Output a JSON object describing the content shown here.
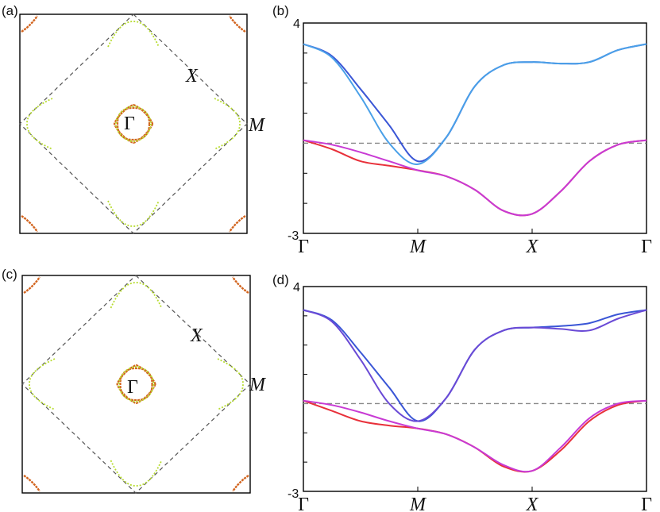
{
  "figure": {
    "panels": [
      {
        "label": "(a)",
        "point_labels": {
          "gamma": "Γ",
          "x": "X",
          "m": "M"
        }
      },
      {
        "label": "(b)"
      },
      {
        "label": "(c)",
        "point_labels": {
          "gamma": "Γ",
          "x": "X",
          "m": "M"
        }
      },
      {
        "label": "(d)"
      }
    ]
  },
  "colors": {
    "band_blue": "#3a56d6",
    "band_lightblue": "#4aa0e8",
    "band_violet": "#6a4ad6",
    "band_red": "#e8303a",
    "band_magenta": "#c83ad4",
    "fs_orange": "#d2641e",
    "fs_yellowgreen": "#b8dc32",
    "dashed": "#888888"
  },
  "chart_data": [
    {
      "id": "b",
      "type": "line",
      "title": "(b)",
      "xlabel": "",
      "ylabel": "",
      "ylim": [
        -3,
        4
      ],
      "ytick_labels": [
        "4",
        "-3"
      ],
      "xticks": [
        0,
        1,
        2,
        3
      ],
      "xtick_labels": [
        "Γ",
        "M",
        "X",
        "Γ"
      ],
      "fermi_level": 0,
      "x": [
        0,
        0.25,
        0.5,
        0.75,
        1,
        1.25,
        1.5,
        1.75,
        2,
        2.25,
        2.5,
        2.75,
        3
      ],
      "series": [
        {
          "name": "upper-band-1",
          "color": "band_blue",
          "values": [
            3.3,
            2.9,
            1.8,
            0.6,
            -0.6,
            0.2,
            1.9,
            2.6,
            2.7,
            2.65,
            2.7,
            3.1,
            3.3
          ]
        },
        {
          "name": "upper-band-2",
          "color": "band_lightblue",
          "values": [
            3.3,
            2.85,
            1.55,
            0.0,
            -0.7,
            0.2,
            1.9,
            2.6,
            2.7,
            2.65,
            2.7,
            3.1,
            3.3
          ]
        },
        {
          "name": "lower-band-1",
          "color": "band_red",
          "values": [
            0.1,
            -0.2,
            -0.6,
            -0.75,
            -0.9,
            -1.1,
            -1.55,
            -2.25,
            -2.35,
            -1.6,
            -0.6,
            -0.05,
            0.1
          ]
        },
        {
          "name": "lower-band-2",
          "color": "band_magenta",
          "values": [
            0.1,
            -0.05,
            -0.3,
            -0.6,
            -0.9,
            -1.1,
            -1.55,
            -2.25,
            -2.35,
            -1.6,
            -0.6,
            -0.05,
            0.1
          ]
        }
      ]
    },
    {
      "id": "d",
      "type": "line",
      "title": "(d)",
      "xlabel": "",
      "ylabel": "",
      "ylim": [
        -3,
        4
      ],
      "ytick_labels": [
        "4",
        "-3"
      ],
      "xticks": [
        0,
        1,
        2,
        3
      ],
      "xtick_labels": [
        "Γ",
        "M",
        "X",
        "Γ"
      ],
      "fermi_level": 0,
      "x": [
        0,
        0.25,
        0.5,
        0.75,
        1,
        1.25,
        1.5,
        1.75,
        2,
        2.25,
        2.5,
        2.75,
        3
      ],
      "series": [
        {
          "name": "upper-band-1",
          "color": "band_blue",
          "values": [
            3.2,
            2.85,
            1.75,
            0.55,
            -0.6,
            0.2,
            1.85,
            2.5,
            2.6,
            2.65,
            2.75,
            3.05,
            3.2
          ]
        },
        {
          "name": "upper-band-2",
          "color": "band_violet",
          "values": [
            3.2,
            2.8,
            1.5,
            0.0,
            -0.6,
            0.2,
            1.85,
            2.5,
            2.6,
            2.55,
            2.5,
            2.9,
            3.2
          ]
        },
        {
          "name": "lower-band-1",
          "color": "band_red",
          "values": [
            0.1,
            -0.25,
            -0.6,
            -0.75,
            -0.85,
            -1.05,
            -1.5,
            -2.15,
            -2.3,
            -1.6,
            -0.6,
            -0.05,
            0.1
          ]
        },
        {
          "name": "lower-band-2",
          "color": "band_magenta",
          "values": [
            0.1,
            -0.05,
            -0.3,
            -0.6,
            -0.85,
            -1.05,
            -1.5,
            -2.1,
            -2.3,
            -1.5,
            -0.5,
            0.0,
            0.1
          ]
        }
      ]
    }
  ]
}
